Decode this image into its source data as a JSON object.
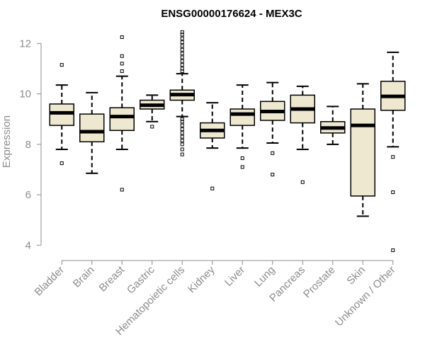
{
  "chart_data": {
    "type": "box",
    "title": "ENSG00000176624 - MEX3C",
    "xlabel": "",
    "ylabel": "Expression",
    "ylim": [
      3.7,
      12.6
    ],
    "yticks": [
      4,
      6,
      8,
      10,
      12
    ],
    "box_fill": "#ede8cf",
    "categories": [
      "Bladder",
      "Brain",
      "Breast",
      "Gastric",
      "Hematopoietic cells",
      "Kidney",
      "Liver",
      "Lung",
      "Pancreas",
      "Prostate",
      "Skin",
      "Unknown / Other"
    ],
    "boxes": [
      {
        "category": "Bladder",
        "whisker_low": 7.8,
        "q1": 8.75,
        "median": 9.25,
        "q3": 9.6,
        "whisker_high": 10.35,
        "outliers": [
          7.25,
          11.15
        ]
      },
      {
        "category": "Brain",
        "whisker_low": 6.85,
        "q1": 8.1,
        "median": 8.5,
        "q3": 9.2,
        "whisker_high": 10.05,
        "outliers": []
      },
      {
        "category": "Breast",
        "whisker_low": 7.8,
        "q1": 8.55,
        "median": 9.1,
        "q3": 9.45,
        "whisker_high": 10.7,
        "outliers": [
          6.2,
          10.9,
          11.2,
          11.5,
          12.25
        ]
      },
      {
        "category": "Gastric",
        "whisker_low": 8.9,
        "q1": 9.4,
        "median": 9.55,
        "q3": 9.75,
        "whisker_high": 9.95,
        "outliers": [
          8.7
        ]
      },
      {
        "category": "Hematopoietic cells",
        "whisker_low": 9.1,
        "q1": 9.75,
        "median": 9.97,
        "q3": 10.15,
        "whisker_high": 10.8,
        "outliers": [
          7.6,
          7.8,
          8.0,
          8.15,
          8.3,
          8.45,
          8.6,
          8.75,
          8.9,
          9.0,
          10.9,
          11.0,
          11.15,
          11.3,
          11.45,
          11.6,
          11.75,
          11.9,
          12.05,
          12.2,
          12.35,
          12.45
        ]
      },
      {
        "category": "Kidney",
        "whisker_low": 7.85,
        "q1": 8.25,
        "median": 8.55,
        "q3": 8.85,
        "whisker_high": 9.65,
        "outliers": [
          6.25
        ]
      },
      {
        "category": "Liver",
        "whisker_low": 7.85,
        "q1": 8.75,
        "median": 9.2,
        "q3": 9.4,
        "whisker_high": 10.35,
        "outliers": [
          7.1,
          7.45
        ]
      },
      {
        "category": "Lung",
        "whisker_low": 8.05,
        "q1": 8.95,
        "median": 9.3,
        "q3": 9.7,
        "whisker_high": 10.45,
        "outliers": [
          6.8,
          7.65
        ]
      },
      {
        "category": "Pancreas",
        "whisker_low": 7.8,
        "q1": 8.85,
        "median": 9.4,
        "q3": 9.95,
        "whisker_high": 10.3,
        "outliers": [
          6.5
        ]
      },
      {
        "category": "Prostate",
        "whisker_low": 8.0,
        "q1": 8.45,
        "median": 8.65,
        "q3": 8.9,
        "whisker_high": 9.5,
        "outliers": []
      },
      {
        "category": "Skin",
        "whisker_low": 5.15,
        "q1": 5.95,
        "median": 8.75,
        "q3": 9.4,
        "whisker_high": 10.4,
        "outliers": []
      },
      {
        "category": "Unknown / Other",
        "whisker_low": 7.9,
        "q1": 9.35,
        "median": 9.9,
        "q3": 10.5,
        "whisker_high": 11.65,
        "outliers": [
          3.8,
          6.1,
          7.5
        ]
      }
    ]
  }
}
